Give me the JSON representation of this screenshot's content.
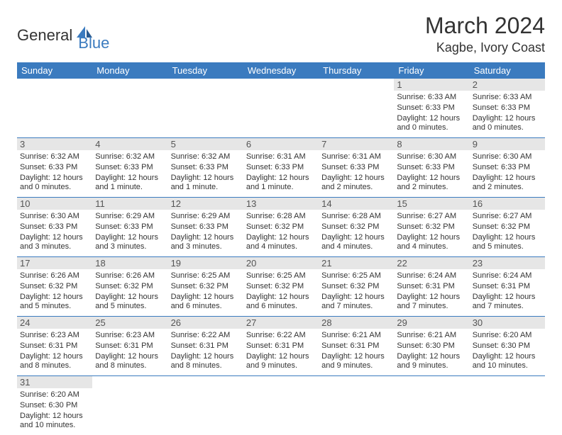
{
  "logo": {
    "text1": "General",
    "text2": "Blue",
    "text1_color": "#333333",
    "text2_color": "#3b7bbf",
    "icon_color": "#3b7bbf"
  },
  "title": "March 2024",
  "location": "Kagbe, Ivory Coast",
  "colors": {
    "header_bg": "#3b7bbf",
    "daynum_bg": "#e6e6e6",
    "border": "#3b7bbf",
    "text": "#333333",
    "header_text": "#ffffff"
  },
  "day_headers": [
    "Sunday",
    "Monday",
    "Tuesday",
    "Wednesday",
    "Thursday",
    "Friday",
    "Saturday"
  ],
  "weeks": [
    [
      null,
      null,
      null,
      null,
      null,
      {
        "n": "1",
        "sr": "Sunrise: 6:33 AM",
        "ss": "Sunset: 6:33 PM",
        "dl": "Daylight: 12 hours and 0 minutes."
      },
      {
        "n": "2",
        "sr": "Sunrise: 6:33 AM",
        "ss": "Sunset: 6:33 PM",
        "dl": "Daylight: 12 hours and 0 minutes."
      }
    ],
    [
      {
        "n": "3",
        "sr": "Sunrise: 6:32 AM",
        "ss": "Sunset: 6:33 PM",
        "dl": "Daylight: 12 hours and 0 minutes."
      },
      {
        "n": "4",
        "sr": "Sunrise: 6:32 AM",
        "ss": "Sunset: 6:33 PM",
        "dl": "Daylight: 12 hours and 1 minute."
      },
      {
        "n": "5",
        "sr": "Sunrise: 6:32 AM",
        "ss": "Sunset: 6:33 PM",
        "dl": "Daylight: 12 hours and 1 minute."
      },
      {
        "n": "6",
        "sr": "Sunrise: 6:31 AM",
        "ss": "Sunset: 6:33 PM",
        "dl": "Daylight: 12 hours and 1 minute."
      },
      {
        "n": "7",
        "sr": "Sunrise: 6:31 AM",
        "ss": "Sunset: 6:33 PM",
        "dl": "Daylight: 12 hours and 2 minutes."
      },
      {
        "n": "8",
        "sr": "Sunrise: 6:30 AM",
        "ss": "Sunset: 6:33 PM",
        "dl": "Daylight: 12 hours and 2 minutes."
      },
      {
        "n": "9",
        "sr": "Sunrise: 6:30 AM",
        "ss": "Sunset: 6:33 PM",
        "dl": "Daylight: 12 hours and 2 minutes."
      }
    ],
    [
      {
        "n": "10",
        "sr": "Sunrise: 6:30 AM",
        "ss": "Sunset: 6:33 PM",
        "dl": "Daylight: 12 hours and 3 minutes."
      },
      {
        "n": "11",
        "sr": "Sunrise: 6:29 AM",
        "ss": "Sunset: 6:33 PM",
        "dl": "Daylight: 12 hours and 3 minutes."
      },
      {
        "n": "12",
        "sr": "Sunrise: 6:29 AM",
        "ss": "Sunset: 6:33 PM",
        "dl": "Daylight: 12 hours and 3 minutes."
      },
      {
        "n": "13",
        "sr": "Sunrise: 6:28 AM",
        "ss": "Sunset: 6:32 PM",
        "dl": "Daylight: 12 hours and 4 minutes."
      },
      {
        "n": "14",
        "sr": "Sunrise: 6:28 AM",
        "ss": "Sunset: 6:32 PM",
        "dl": "Daylight: 12 hours and 4 minutes."
      },
      {
        "n": "15",
        "sr": "Sunrise: 6:27 AM",
        "ss": "Sunset: 6:32 PM",
        "dl": "Daylight: 12 hours and 4 minutes."
      },
      {
        "n": "16",
        "sr": "Sunrise: 6:27 AM",
        "ss": "Sunset: 6:32 PM",
        "dl": "Daylight: 12 hours and 5 minutes."
      }
    ],
    [
      {
        "n": "17",
        "sr": "Sunrise: 6:26 AM",
        "ss": "Sunset: 6:32 PM",
        "dl": "Daylight: 12 hours and 5 minutes."
      },
      {
        "n": "18",
        "sr": "Sunrise: 6:26 AM",
        "ss": "Sunset: 6:32 PM",
        "dl": "Daylight: 12 hours and 5 minutes."
      },
      {
        "n": "19",
        "sr": "Sunrise: 6:25 AM",
        "ss": "Sunset: 6:32 PM",
        "dl": "Daylight: 12 hours and 6 minutes."
      },
      {
        "n": "20",
        "sr": "Sunrise: 6:25 AM",
        "ss": "Sunset: 6:32 PM",
        "dl": "Daylight: 12 hours and 6 minutes."
      },
      {
        "n": "21",
        "sr": "Sunrise: 6:25 AM",
        "ss": "Sunset: 6:32 PM",
        "dl": "Daylight: 12 hours and 7 minutes."
      },
      {
        "n": "22",
        "sr": "Sunrise: 6:24 AM",
        "ss": "Sunset: 6:31 PM",
        "dl": "Daylight: 12 hours and 7 minutes."
      },
      {
        "n": "23",
        "sr": "Sunrise: 6:24 AM",
        "ss": "Sunset: 6:31 PM",
        "dl": "Daylight: 12 hours and 7 minutes."
      }
    ],
    [
      {
        "n": "24",
        "sr": "Sunrise: 6:23 AM",
        "ss": "Sunset: 6:31 PM",
        "dl": "Daylight: 12 hours and 8 minutes."
      },
      {
        "n": "25",
        "sr": "Sunrise: 6:23 AM",
        "ss": "Sunset: 6:31 PM",
        "dl": "Daylight: 12 hours and 8 minutes."
      },
      {
        "n": "26",
        "sr": "Sunrise: 6:22 AM",
        "ss": "Sunset: 6:31 PM",
        "dl": "Daylight: 12 hours and 8 minutes."
      },
      {
        "n": "27",
        "sr": "Sunrise: 6:22 AM",
        "ss": "Sunset: 6:31 PM",
        "dl": "Daylight: 12 hours and 9 minutes."
      },
      {
        "n": "28",
        "sr": "Sunrise: 6:21 AM",
        "ss": "Sunset: 6:31 PM",
        "dl": "Daylight: 12 hours and 9 minutes."
      },
      {
        "n": "29",
        "sr": "Sunrise: 6:21 AM",
        "ss": "Sunset: 6:30 PM",
        "dl": "Daylight: 12 hours and 9 minutes."
      },
      {
        "n": "30",
        "sr": "Sunrise: 6:20 AM",
        "ss": "Sunset: 6:30 PM",
        "dl": "Daylight: 12 hours and 10 minutes."
      }
    ],
    [
      {
        "n": "31",
        "sr": "Sunrise: 6:20 AM",
        "ss": "Sunset: 6:30 PM",
        "dl": "Daylight: 12 hours and 10 minutes."
      },
      null,
      null,
      null,
      null,
      null,
      null
    ]
  ]
}
